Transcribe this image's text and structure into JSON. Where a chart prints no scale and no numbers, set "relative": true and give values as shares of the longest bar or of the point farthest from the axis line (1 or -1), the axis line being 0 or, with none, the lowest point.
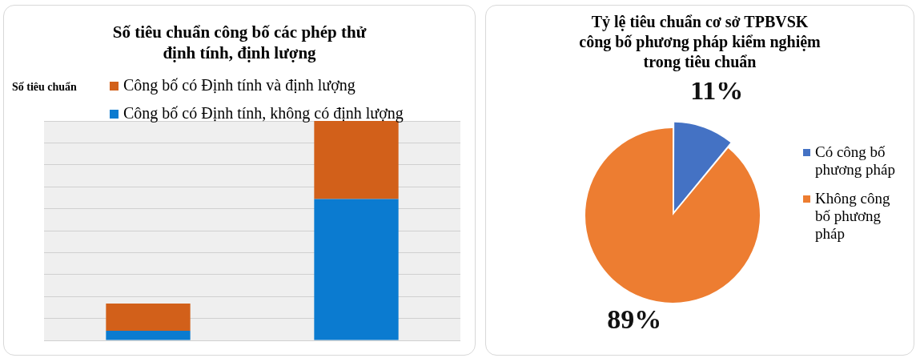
{
  "chart_data": [
    {
      "type": "bar",
      "title": "Số tiêu chuẩn công bố các phép thử\nđịnh tính, định lượng",
      "ylabel": "Số tiêu chuẩn",
      "categories": [
        null,
        null
      ],
      "stacked": true,
      "relative": true,
      "grid": "y",
      "legend": "top left",
      "series": [
        {
          "name": "Công bố có Định tính, không có định lượng",
          "color": "#0b7bd0",
          "values": [
            0.044,
            0.644
          ]
        },
        {
          "name": "Công bố có Định tính và định lượng",
          "color": "#d2601a",
          "values": [
            0.124,
            0.356
          ]
        }
      ]
    },
    {
      "type": "pie",
      "title": "Tỷ lệ tiêu chuẩn cơ sở TPBVSK\ncông bố phương pháp kiểm nghiệm\ntrong tiêu chuẩn",
      "categories": [
        "Có công bố phương pháp",
        "Không công bố phương pháp"
      ],
      "values": [
        11,
        89
      ],
      "colors": [
        "#4472c4",
        "#ed7d31"
      ],
      "value_labels": [
        "11%",
        "89%"
      ],
      "legend": "right"
    }
  ]
}
